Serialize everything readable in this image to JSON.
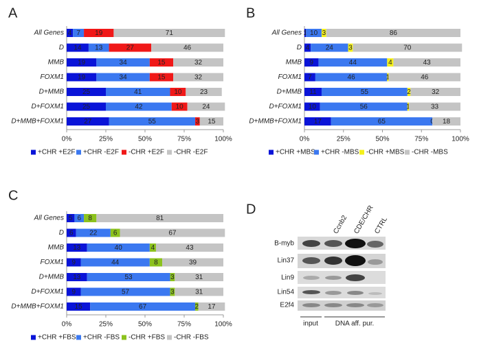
{
  "chart_data": [
    {
      "type": "stacked_bar_horizontal",
      "panel": "A",
      "categories": [
        "All Genes",
        "D",
        "MMB",
        "FOXM1",
        "D+MMB",
        "D+FOXM1",
        "D+MMB+FOXM1"
      ],
      "series": [
        {
          "name": "+CHR +E2F",
          "color": "#0a14d8",
          "values": [
            4,
            14,
            19,
            19,
            25,
            25,
            27
          ]
        },
        {
          "name": "+CHR -E2F",
          "color": "#3b78f0",
          "values": [
            7,
            13,
            34,
            34,
            41,
            42,
            55
          ]
        },
        {
          "name": "-CHR +E2F",
          "color": "#f01818",
          "values": [
            19,
            27,
            15,
            15,
            10,
            10,
            3
          ]
        },
        {
          "name": "-CHR -E2F",
          "color": "#c4c4c4",
          "values": [
            71,
            46,
            32,
            32,
            23,
            24,
            15
          ]
        }
      ],
      "xlim": [
        0,
        100
      ],
      "xticks": [
        {
          "value": 0,
          "label": "0%"
        },
        {
          "value": 25,
          "label": "25%"
        },
        {
          "value": 50,
          "label": "50%"
        },
        {
          "value": 75,
          "label": "75%"
        },
        {
          "value": 100,
          "label": "100%"
        }
      ],
      "grid": false,
      "legend": "bottom"
    },
    {
      "type": "stacked_bar_horizontal",
      "panel": "B",
      "categories": [
        "All Genes",
        "D",
        "MMB",
        "FOXM1",
        "D+MMB",
        "D+FOXM1",
        "D+MMB+FOXM1"
      ],
      "series": [
        {
          "name": "+CHR +MBS",
          "color": "#0a14d8",
          "values": [
            1,
            4,
            9,
            7,
            11,
            10,
            17
          ]
        },
        {
          "name": "+CHR -MBS",
          "color": "#3b78f0",
          "values": [
            10,
            24,
            44,
            46,
            55,
            56,
            65
          ]
        },
        {
          "name": "-CHR +MBS",
          "color": "#f4f01c",
          "values": [
            3,
            3,
            4,
            1,
            2,
            1,
            0
          ]
        },
        {
          "name": "-CHR -MBS",
          "color": "#c4c4c4",
          "values": [
            86,
            70,
            43,
            46,
            32,
            33,
            18
          ]
        }
      ],
      "xlim": [
        0,
        100
      ],
      "xticks": [
        {
          "value": 0,
          "label": "0%"
        },
        {
          "value": 25,
          "label": "25%"
        },
        {
          "value": 50,
          "label": "50%"
        },
        {
          "value": 75,
          "label": "75%"
        },
        {
          "value": 100,
          "label": "100%"
        }
      ],
      "grid": false,
      "legend": "bottom"
    },
    {
      "type": "stacked_bar_horizontal",
      "panel": "C",
      "categories": [
        "All Genes",
        "D",
        "MMB",
        "FOXM1",
        "D+MMB",
        "D+FOXM1",
        "D+MMB+FOXM1"
      ],
      "series": [
        {
          "name": "+CHR +FBS",
          "color": "#0a14d8",
          "values": [
            5,
            6,
            13,
            9,
            13,
            9,
            15
          ]
        },
        {
          "name": "+CHR -FBS",
          "color": "#3b78f0",
          "values": [
            6,
            22,
            40,
            44,
            53,
            57,
            67
          ]
        },
        {
          "name": "-CHR +FBS",
          "color": "#8cc21e",
          "values": [
            8,
            6,
            4,
            8,
            3,
            3,
            2
          ]
        },
        {
          "name": "-CHR -FBS",
          "color": "#c4c4c4",
          "values": [
            81,
            67,
            43,
            39,
            31,
            31,
            17
          ]
        }
      ],
      "xlim": [
        0,
        100
      ],
      "xticks": [
        {
          "value": 0,
          "label": "0%"
        },
        {
          "value": 25,
          "label": "25%"
        },
        {
          "value": 50,
          "label": "50%"
        },
        {
          "value": 75,
          "label": "75%"
        },
        {
          "value": 100,
          "label": "100%"
        }
      ],
      "grid": false,
      "legend": "bottom"
    }
  ],
  "blot": {
    "panel": "D",
    "rows": [
      "B-myb",
      "Lin37",
      "Lin9",
      "Lin54",
      "E2f4"
    ],
    "columns": [
      "Ccnb2",
      "CDE/CHR",
      "CTRL"
    ],
    "input": "input",
    "group": "DNA aff. pur."
  }
}
